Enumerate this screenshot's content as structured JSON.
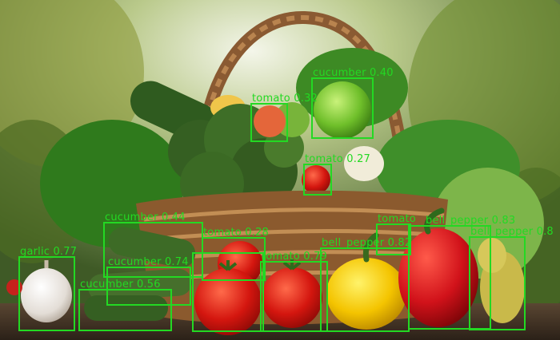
{
  "colors": {
    "box": "#23d923",
    "label": "#23d923"
  },
  "detections": [
    {
      "label": "cucumber 0.40"
    },
    {
      "label": "tomato 0.32"
    },
    {
      "label": "tomato 0.27"
    },
    {
      "label": "cucumber 0.44"
    },
    {
      "label": "garlic 0.77"
    },
    {
      "label": "cucumber 0.74"
    },
    {
      "label": "cucumber 0.56"
    },
    {
      "label": "tomato 0.28"
    },
    {
      "label": "tomato 0.79"
    },
    {
      "label": "bell_pepper 0.82"
    },
    {
      "label": "tomato"
    },
    {
      "label": "bell_pepper 0.83"
    },
    {
      "label": "bell_pepper 0.8"
    }
  ]
}
